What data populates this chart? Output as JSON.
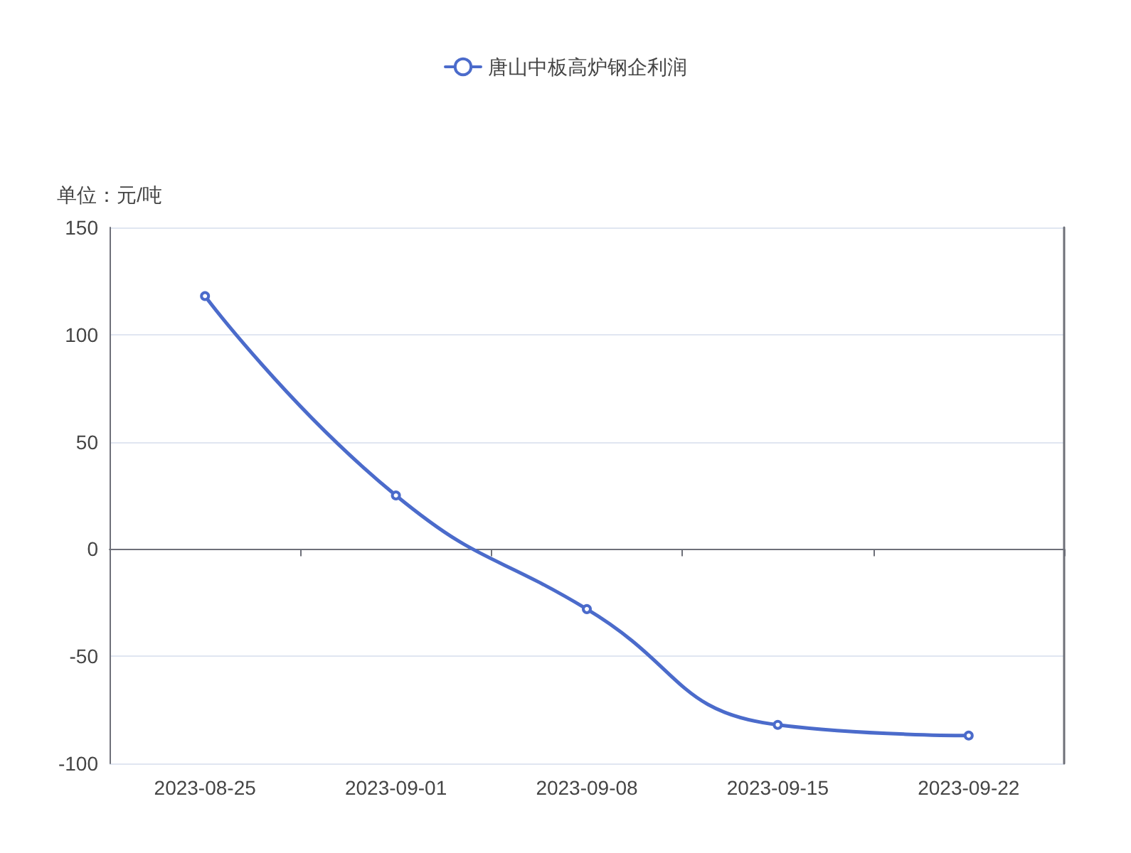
{
  "chart_data": {
    "type": "line",
    "ylabel": "单位：元/吨",
    "categories": [
      "2023-08-25",
      "2023-09-01",
      "2023-09-08",
      "2023-09-15",
      "2023-09-22"
    ],
    "series": [
      {
        "name": "唐山中板高炉钢企利润",
        "color": "#4b6bcb",
        "values": [
          118,
          25,
          -28,
          -82,
          -87
        ]
      }
    ],
    "ylim": [
      -100,
      150
    ],
    "yticks": [
      -100,
      -50,
      0,
      50,
      100,
      150
    ],
    "grid": "y",
    "legend": "top",
    "marker": "circle",
    "line_style": "solid"
  }
}
